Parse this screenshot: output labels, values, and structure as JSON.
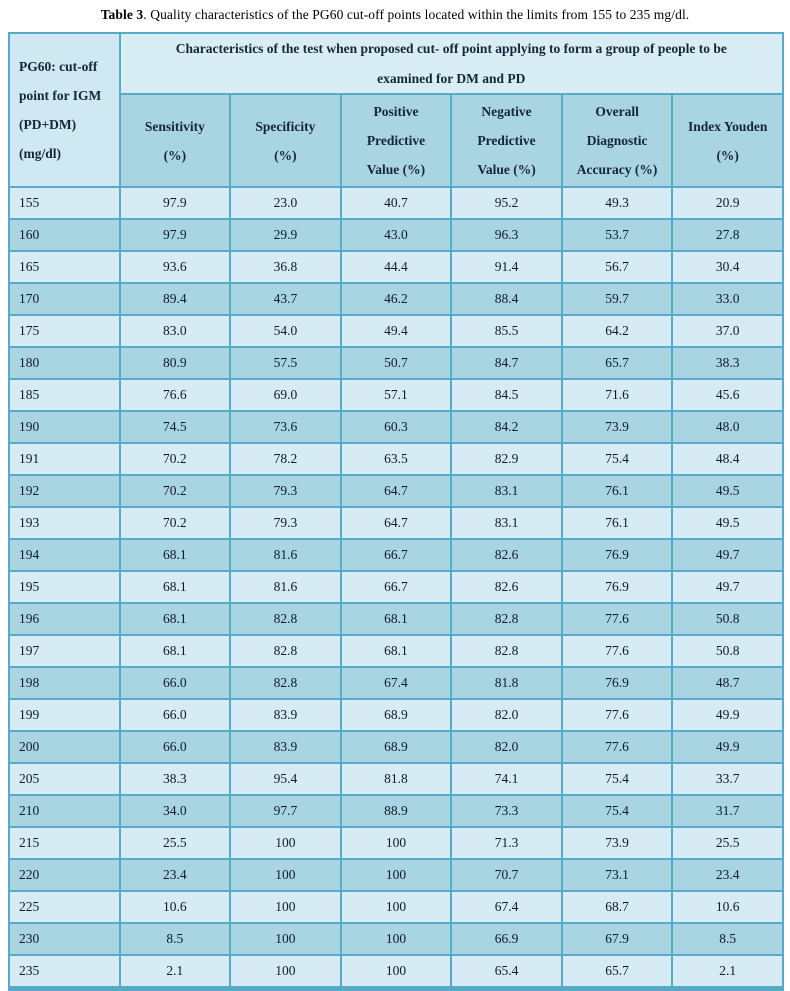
{
  "caption": {
    "label": "Table 3",
    "text": ". Quality characteristics of the PG60 cut-off points located within the limits from 155 to 235 mg/dl."
  },
  "table": {
    "corner_header_lines": [
      "PG60: cut-off",
      "point for IGM",
      "(PD+DM)",
      "(mg/dl)"
    ],
    "span_header": "Characteristics of the test when proposed cut- off point applying to form a group of people to be examined for DM and PD",
    "columns": [
      [
        "Sensitivity",
        "(%)"
      ],
      [
        "Specificity",
        "(%)"
      ],
      [
        "Positive",
        "Predictive",
        "Value (%)"
      ],
      [
        "Negative",
        "Predictive",
        "Value (%)"
      ],
      [
        "Overall",
        "Diagnostic",
        "Accuracy (%)"
      ],
      [
        "Index Youden",
        "(%)"
      ]
    ],
    "rows": [
      [
        "155",
        "97.9",
        "23.0",
        "40.7",
        "95.2",
        "49.3",
        "20.9"
      ],
      [
        "160",
        "97.9",
        "29.9",
        "43.0",
        "96.3",
        "53.7",
        "27.8"
      ],
      [
        "165",
        "93.6",
        "36.8",
        "44.4",
        "91.4",
        "56.7",
        "30.4"
      ],
      [
        "170",
        "89.4",
        "43.7",
        "46.2",
        "88.4",
        "59.7",
        "33.0"
      ],
      [
        "175",
        "83.0",
        "54.0",
        "49.4",
        "85.5",
        "64.2",
        "37.0"
      ],
      [
        "180",
        "80.9",
        "57.5",
        "50.7",
        "84.7",
        "65.7",
        "38.3"
      ],
      [
        "185",
        "76.6",
        "69.0",
        "57.1",
        "84.5",
        "71.6",
        "45.6"
      ],
      [
        "190",
        "74.5",
        "73.6",
        "60.3",
        "84.2",
        "73.9",
        "48.0"
      ],
      [
        "191",
        "70.2",
        "78.2",
        "63.5",
        "82.9",
        "75.4",
        "48.4"
      ],
      [
        "192",
        "70.2",
        "79.3",
        "64.7",
        "83.1",
        "76.1",
        "49.5"
      ],
      [
        "193",
        "70.2",
        "79.3",
        "64.7",
        "83.1",
        "76.1",
        "49.5"
      ],
      [
        "194",
        "68.1",
        "81.6",
        "66.7",
        "82.6",
        "76.9",
        "49.7"
      ],
      [
        "195",
        "68.1",
        "81.6",
        "66.7",
        "82.6",
        "76.9",
        "49.7"
      ],
      [
        "196",
        "68.1",
        "82.8",
        "68.1",
        "82.8",
        "77.6",
        "50.8"
      ],
      [
        "197",
        "68.1",
        "82.8",
        "68.1",
        "82.8",
        "77.6",
        "50.8"
      ],
      [
        "198",
        "66.0",
        "82.8",
        "67.4",
        "81.8",
        "76.9",
        "48.7"
      ],
      [
        "199",
        "66.0",
        "83.9",
        "68.9",
        "82.0",
        "77.6",
        "49.9"
      ],
      [
        "200",
        "66.0",
        "83.9",
        "68.9",
        "82.0",
        "77.6",
        "49.9"
      ],
      [
        "205",
        "38.3",
        "95.4",
        "81.8",
        "74.1",
        "75.4",
        "33.7"
      ],
      [
        "210",
        "34.0",
        "97.7",
        "88.9",
        "73.3",
        "75.4",
        "31.7"
      ],
      [
        "215",
        "25.5",
        "100",
        "100",
        "71.3",
        "73.9",
        "25.5"
      ],
      [
        "220",
        "23.4",
        "100",
        "100",
        "70.7",
        "73.1",
        "23.4"
      ],
      [
        "225",
        "10.6",
        "100",
        "100",
        "67.4",
        "68.7",
        "10.6"
      ],
      [
        "230",
        "8.5",
        "100",
        "100",
        "66.9",
        "67.9",
        "8.5"
      ],
      [
        "235",
        "2.1",
        "100",
        "100",
        "65.4",
        "65.7",
        "2.1"
      ]
    ]
  },
  "colors": {
    "row_light": "#d6ebf3",
    "row_dark": "#a9d4e2",
    "subheader_bg": "#a9d4e2",
    "span_header_bg": "#d9edf4",
    "corner_bg": "#cfe8f1",
    "border_teal": "#58abc8",
    "header_text": "#15263a",
    "data_text": "#0e1c28"
  },
  "chart_data": {
    "type": "table",
    "title": "Table 3. Quality characteristics of the PG60 cut-off points located within the limits from 155 to 235 mg/dl.",
    "row_header": "PG60: cut-off point for IGM (PD+DM) (mg/dl)",
    "group_header": "Characteristics of the test when proposed cut- off point applying to form a group of people to be examined for DM and PD",
    "columns": [
      "Sensitivity (%)",
      "Specificity (%)",
      "Positive Predictive Value (%)",
      "Negative Predictive Value (%)",
      "Overall Diagnostic Accuracy (%)",
      "Index Youden (%)"
    ],
    "cutoff_points": [
      155,
      160,
      165,
      170,
      175,
      180,
      185,
      190,
      191,
      192,
      193,
      194,
      195,
      196,
      197,
      198,
      199,
      200,
      205,
      210,
      215,
      220,
      225,
      230,
      235
    ],
    "sensitivity": [
      97.9,
      97.9,
      93.6,
      89.4,
      83.0,
      80.9,
      76.6,
      74.5,
      70.2,
      70.2,
      70.2,
      68.1,
      68.1,
      68.1,
      68.1,
      66.0,
      66.0,
      66.0,
      38.3,
      34.0,
      25.5,
      23.4,
      10.6,
      8.5,
      2.1
    ],
    "specificity": [
      23.0,
      29.9,
      36.8,
      43.7,
      54.0,
      57.5,
      69.0,
      73.6,
      78.2,
      79.3,
      79.3,
      81.6,
      81.6,
      82.8,
      82.8,
      82.8,
      83.9,
      83.9,
      95.4,
      97.7,
      100,
      100,
      100,
      100,
      100
    ],
    "positive_predictive_value": [
      40.7,
      43.0,
      44.4,
      46.2,
      49.4,
      50.7,
      57.1,
      60.3,
      63.5,
      64.7,
      64.7,
      66.7,
      66.7,
      68.1,
      68.1,
      67.4,
      68.9,
      68.9,
      81.8,
      88.9,
      100,
      100,
      100,
      100,
      100
    ],
    "negative_predictive_value": [
      95.2,
      96.3,
      91.4,
      88.4,
      85.5,
      84.7,
      84.5,
      84.2,
      82.9,
      83.1,
      83.1,
      82.6,
      82.6,
      82.8,
      82.8,
      81.8,
      82.0,
      82.0,
      74.1,
      73.3,
      71.3,
      70.7,
      67.4,
      66.9,
      65.4
    ],
    "overall_diagnostic_accuracy": [
      49.3,
      53.7,
      56.7,
      59.7,
      64.2,
      65.7,
      71.6,
      73.9,
      75.4,
      76.1,
      76.1,
      76.9,
      76.9,
      77.6,
      77.6,
      76.9,
      77.6,
      77.6,
      75.4,
      75.4,
      73.9,
      73.1,
      68.7,
      67.9,
      65.7
    ],
    "index_youden": [
      20.9,
      27.8,
      30.4,
      33.0,
      37.0,
      38.3,
      45.6,
      48.0,
      48.4,
      49.5,
      49.5,
      49.7,
      49.7,
      50.8,
      50.8,
      48.7,
      49.9,
      49.9,
      33.7,
      31.7,
      25.5,
      23.4,
      10.6,
      8.5,
      2.1
    ]
  }
}
